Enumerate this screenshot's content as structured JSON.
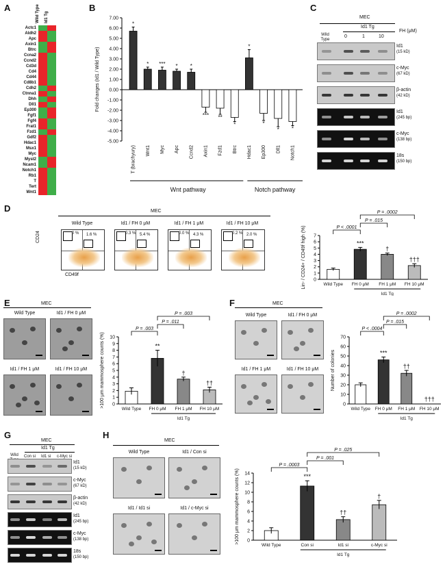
{
  "panels": {
    "A": "A",
    "B": "B",
    "C": "C",
    "D": "D",
    "E": "E",
    "F": "F",
    "G": "G",
    "H": "H"
  },
  "heatmap": {
    "columns": [
      "Wild Type",
      "Id1 Tg"
    ],
    "genes": [
      "Actc1",
      "Aldh2",
      "Apc",
      "Axin1",
      "Btrc",
      "Ccna2",
      "Ccnd2",
      "Cd3d",
      "Cd4",
      "Cd44",
      "Cd8b1",
      "Cdh2",
      "Ctnna1",
      "Dhh",
      "Dll1",
      "Ep300",
      "Fgf1",
      "Fgf4",
      "Frat1",
      "Fzd1",
      "Gdf2",
      "Hdac1",
      "Msx1",
      "Myc",
      "Myst2",
      "Ncam1",
      "Notch1",
      "Rb1",
      "T",
      "Tert",
      "Wnt1"
    ],
    "wt_high": [
      false,
      true,
      true,
      false,
      false,
      true,
      true,
      true,
      true,
      true,
      true,
      false,
      true,
      false,
      true,
      false,
      false,
      true,
      true,
      false,
      true,
      true,
      true,
      true,
      false,
      false,
      true,
      true,
      true,
      true,
      true
    ],
    "colors": {
      "high": "#e8252a",
      "low": "#3fae49"
    }
  },
  "chart_B": {
    "type": "bar",
    "ylabel": "Fold changes (Id1 / Wild Type)",
    "yticks": [
      "7.00",
      "6.00",
      "5.00",
      "4.00",
      "3.00",
      "2.00",
      "1.00",
      "0.00",
      "-1.00",
      "-2.00",
      "-3.00",
      "-4.00",
      "-5.00"
    ],
    "ylim": [
      -5,
      7
    ],
    "categories": [
      "T (brachyury)",
      "Wnt1",
      "Myc",
      "Apc",
      "Ccnd2",
      "Axin1",
      "Fzd1",
      "Btrc",
      "Hdac1",
      "Ep300",
      "Dll1",
      "Notch1"
    ],
    "values": [
      5.7,
      2.0,
      1.9,
      1.8,
      1.7,
      -1.7,
      -1.8,
      -2.7,
      3.1,
      -2.3,
      -2.8,
      -3.1
    ],
    "errors": [
      0.4,
      0.2,
      0.3,
      0.2,
      0.3,
      0.5,
      0.6,
      0.4,
      0.8,
      0.7,
      0.8,
      0.4
    ],
    "fills": [
      "#333",
      "#333",
      "#333",
      "#333",
      "#333",
      "#fff",
      "#fff",
      "#fff",
      "#333",
      "#fff",
      "#fff",
      "#fff"
    ],
    "sig": [
      "*",
      "*",
      "***",
      "*",
      "*",
      "***",
      "**",
      "*",
      "*",
      "*",
      "*",
      "*"
    ],
    "groups": [
      {
        "label": "Wnt pathway"
      },
      {
        "label": "Notch pathway"
      }
    ]
  },
  "panel_C": {
    "title": "MEC",
    "tg": "Id1 Tg",
    "wt": "Wild\nType",
    "conc_label": "FH (μM)",
    "concs": [
      "0",
      "1",
      "10"
    ],
    "rows": [
      {
        "name": "Id1",
        "size": "(15 kD)",
        "dark": false
      },
      {
        "name": "c-Myc",
        "size": "(67 kD)",
        "dark": false
      },
      {
        "name": "β-actin",
        "size": "(42 kD)",
        "dark": false
      },
      {
        "name": "Id1",
        "size": "(245 bp)",
        "dark": true
      },
      {
        "name": "c-Myc",
        "size": "(138 bp)",
        "dark": true
      },
      {
        "name": "18s",
        "size": "(150 bp)",
        "dark": true
      }
    ]
  },
  "panel_D": {
    "title": "MEC",
    "ylabel_axis": "CD24",
    "xlabel_axis": "CD49f",
    "plots": [
      {
        "label": "Wild Type",
        "q1": "0 %",
        "q2": "1.6 %"
      },
      {
        "label": "Id1 / FH 0 μM",
        "q1": "0.3 %",
        "q2": "5.4 %"
      },
      {
        "label": "Id1 / FH 1 μM",
        "q1": "0.0 %",
        "q2": "4.3 %"
      },
      {
        "label": "Id1 / FH 10 μM",
        "q1": "0.2 %",
        "q2": "2.0 %"
      }
    ],
    "chart": {
      "type": "bar",
      "ylabel": "Lin- / CD24+ / CD49f high (%)",
      "categories": [
        "Wild Type",
        "FH 0 μM",
        "FH 1 μM",
        "FH 10 μM"
      ],
      "values": [
        1.6,
        4.8,
        4.0,
        2.2
      ],
      "errors": [
        0.2,
        0.3,
        0.2,
        0.3
      ],
      "ylim": [
        0,
        7
      ],
      "yticks": [
        "0",
        "1",
        "2",
        "3",
        "4",
        "5",
        "6",
        "7"
      ],
      "fills": [
        "#fff",
        "#333",
        "#888",
        "#bbb"
      ],
      "sig": [
        "",
        "***",
        "†",
        "†††"
      ],
      "pvals": [
        "P < .0001",
        "P = .015",
        "P = .0002"
      ],
      "group": "Id1 Tg"
    }
  },
  "panel_E": {
    "title": "MEC",
    "images": [
      "Wild Type",
      "Id1 / FH 0 μM",
      "Id1 / FH 1 μM",
      "Id1 / FH 10 μM"
    ],
    "chart": {
      "type": "bar",
      "ylabel": ">100 μm mammosphere counts (%)",
      "categories": [
        "Wild Type",
        "FH 0 μM",
        "FH 1 μM",
        "FH 10 μM"
      ],
      "values": [
        1.9,
        6.8,
        3.7,
        2.1
      ],
      "errors": [
        0.5,
        1.2,
        0.3,
        0.4
      ],
      "ylim": [
        0,
        10
      ],
      "yticks": [
        "0",
        "1",
        "2",
        "3",
        "4",
        "5",
        "6",
        "7",
        "8",
        "9",
        "10"
      ],
      "fills": [
        "#fff",
        "#333",
        "#888",
        "#bbb"
      ],
      "sig": [
        "",
        "**",
        "†",
        "††"
      ],
      "pvals": [
        "P = .003",
        "P = .011",
        "P = .003"
      ],
      "group": "Id1 Tg"
    }
  },
  "panel_F": {
    "title": "MEC",
    "images": [
      "Wild Type",
      "Id1 / FH 0 μM",
      "Id1 / FH 1 μM",
      "Id1 / FH 10 μM"
    ],
    "chart": {
      "type": "bar",
      "ylabel": "Number of colonies",
      "categories": [
        "Wild Type",
        "FH 0 μM",
        "FH 1 μM",
        "FH 10 μM"
      ],
      "values": [
        20,
        46,
        32,
        0
      ],
      "errors": [
        2,
        3,
        3,
        0
      ],
      "ylim": [
        0,
        70
      ],
      "yticks": [
        "0",
        "10",
        "20",
        "30",
        "40",
        "50",
        "60",
        "70"
      ],
      "fills": [
        "#fff",
        "#333",
        "#888",
        "#bbb"
      ],
      "sig": [
        "",
        "***",
        "††",
        "†††"
      ],
      "pvals": [
        "P < .0004",
        "P = .015",
        "P = .0002"
      ],
      "group": "Id1 Tg"
    }
  },
  "panel_G": {
    "title": "MEC",
    "tg": "Id1 Tg",
    "cols": [
      "Wild\nType",
      "Con si",
      "Id1 si",
      "c-Myc si"
    ],
    "rows": [
      {
        "name": "Id1",
        "size": "(15 kD)",
        "dark": false
      },
      {
        "name": "c-Myc",
        "size": "(67 kD)",
        "dark": false
      },
      {
        "name": "β-actin",
        "size": "(42 kD)",
        "dark": false
      },
      {
        "name": "Id1",
        "size": "(245 bp)",
        "dark": true
      },
      {
        "name": "c-Myc",
        "size": "(138 bp)",
        "dark": true
      },
      {
        "name": "18s",
        "size": "(150 bp)",
        "dark": true
      }
    ]
  },
  "panel_H": {
    "title": "MEC",
    "images": [
      "Wild Type",
      "Id1 / Con si",
      "Id1 / Id1 si",
      "Id1 / c-Myc si"
    ],
    "chart": {
      "type": "bar",
      "ylabel": ">100 μm mammosphere counts (%)",
      "categories": [
        "Wild Type",
        "Con si",
        "Id1 si",
        "c-Myc si"
      ],
      "values": [
        2.0,
        11.3,
        4.3,
        7.4
      ],
      "errors": [
        0.6,
        1.1,
        0.6,
        0.9
      ],
      "ylim": [
        0,
        14
      ],
      "yticks": [
        "0",
        "2",
        "4",
        "6",
        "8",
        "10",
        "12",
        "14"
      ],
      "fills": [
        "#fff",
        "#333",
        "#888",
        "#bbb"
      ],
      "sig": [
        "",
        "***",
        "††",
        "†"
      ],
      "pvals": [
        "P = .0003",
        "P = .001",
        "P = .025"
      ],
      "group": "Id1 Tg"
    }
  }
}
